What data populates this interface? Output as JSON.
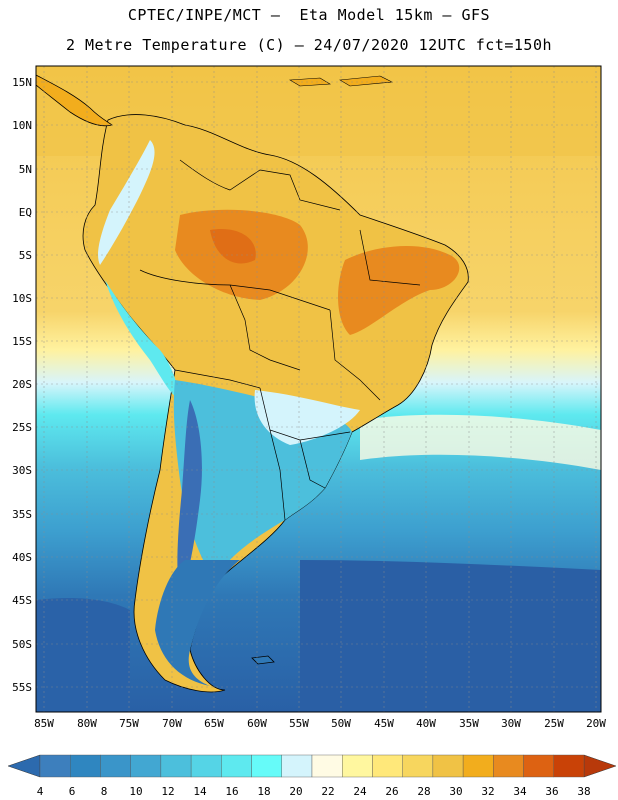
{
  "header": {
    "line1": "CPTEC/INPE/MCT –  Eta Model 15km – GFS",
    "line2": "2 Metre Temperature (C) – 24/07/2020 12UTC fct=150h"
  },
  "axes": {
    "lat_labels": [
      "15N",
      "10N",
      "5N",
      "EQ",
      "5S",
      "10S",
      "15S",
      "20S",
      "25S",
      "30S",
      "35S",
      "40S",
      "45S",
      "50S",
      "55S"
    ],
    "lon_labels": [
      "85W",
      "80W",
      "75W",
      "70W",
      "65W",
      "60W",
      "55W",
      "50W",
      "45W",
      "40W",
      "35W",
      "30W",
      "25W",
      "20W"
    ]
  },
  "colorbar": {
    "units": "C",
    "labels": [
      "4",
      "6",
      "8",
      "10",
      "12",
      "14",
      "16",
      "18",
      "20",
      "22",
      "24",
      "26",
      "28",
      "30",
      "32",
      "34",
      "36",
      "38"
    ],
    "colors": [
      "#3d7fbd",
      "#2f86c0",
      "#3a95c9",
      "#42a7d2",
      "#4cbfdc",
      "#55d4e6",
      "#5ee9ef",
      "#66fbf9",
      "#d4f4fc",
      "#fffbe4",
      "#fff79f",
      "#ffe87a",
      "#f7d65e",
      "#f0c245",
      "#f2ad1d",
      "#e88a1f",
      "#dd6212",
      "#c94207"
    ],
    "low_arrow_color": "#2c6aae",
    "high_arrow_color": "#b8390a"
  }
}
